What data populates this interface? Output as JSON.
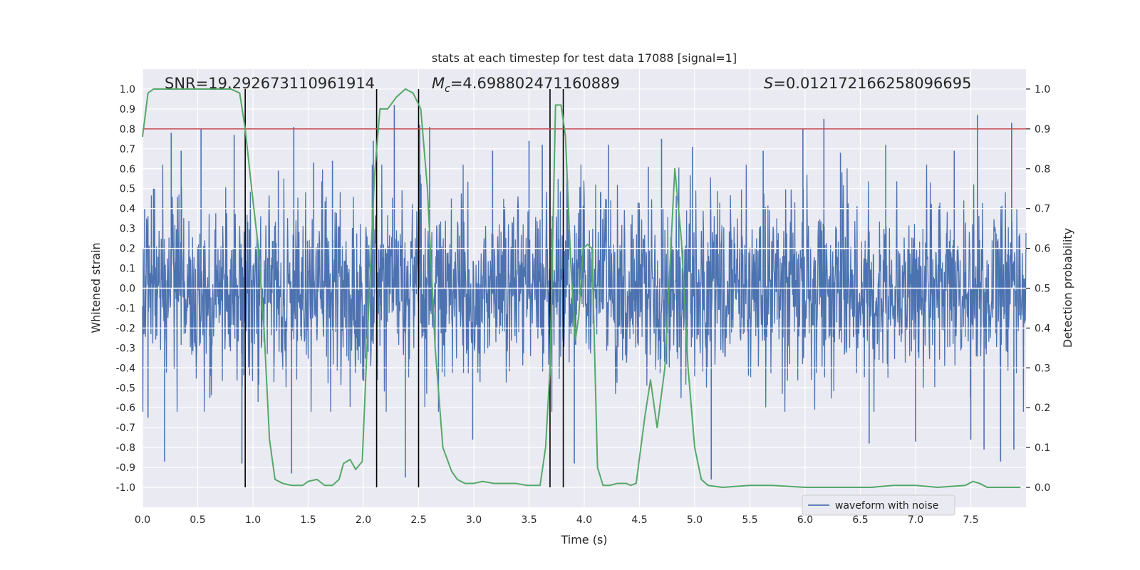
{
  "chart_data": {
    "type": "line",
    "title": "stats at each timestep for test data 17088 [signal=1]",
    "xlabel": "Time (s)",
    "ylabel_left": "Whitened strain",
    "ylabel_right": "Detection probability",
    "xlim": [
      0.0,
      8.0
    ],
    "ylim_left": [
      -1.1,
      1.1
    ],
    "ylim_right": [
      -0.05,
      1.05
    ],
    "xticks": [
      "0.0",
      "0.5",
      "1.0",
      "1.5",
      "2.0",
      "2.5",
      "3.0",
      "3.5",
      "4.0",
      "4.5",
      "5.0",
      "5.5",
      "6.0",
      "6.5",
      "7.0",
      "7.5"
    ],
    "yticks_left": [
      "1.0",
      "0.9",
      "0.8",
      "0.7",
      "0.6",
      "0.5",
      "0.4",
      "0.3",
      "0.2",
      "0.1",
      "0.0",
      "-0.1",
      "-0.2",
      "-0.3",
      "-0.4",
      "-0.5",
      "-0.6",
      "-0.7",
      "-0.8",
      "-0.9",
      "-1.0"
    ],
    "yticks_right": [
      "1.0",
      "0.9",
      "0.8",
      "0.7",
      "0.6",
      "0.5",
      "0.4",
      "0.3",
      "0.2",
      "0.1",
      "0.0"
    ],
    "annotations": {
      "snr": "SNR=19.292673110961914",
      "mc_symbol": "M",
      "mc_sub": "c",
      "mc_value": "=4.698802471160889",
      "s_symbol": "S",
      "s_value": "=0.012172166258096695"
    },
    "threshold": {
      "value_right": 0.9,
      "color": "#c44e52"
    },
    "vertical_markers_s": [
      0.93,
      2.12,
      2.5,
      3.69,
      3.81
    ],
    "series": [
      {
        "name": "waveform with noise",
        "color": "#4c72b0",
        "axis": "left",
        "kind": "noisy strain",
        "envelope_typical": 0.4,
        "peaks": [
          {
            "t": 0.02,
            "v": 0.4
          },
          {
            "t": 0.05,
            "v": -0.65
          },
          {
            "t": 0.1,
            "v": 0.5
          },
          {
            "t": 0.2,
            "v": -0.87
          },
          {
            "t": 0.26,
            "v": 0.78
          },
          {
            "t": 0.35,
            "v": 0.69
          },
          {
            "t": 0.53,
            "v": 0.8
          },
          {
            "t": 0.61,
            "v": -0.55
          },
          {
            "t": 0.83,
            "v": 0.77
          },
          {
            "t": 0.9,
            "v": -0.88
          },
          {
            "t": 1.23,
            "v": 0.59
          },
          {
            "t": 1.35,
            "v": -0.93
          },
          {
            "t": 1.37,
            "v": 0.81
          },
          {
            "t": 1.55,
            "v": 0.63
          },
          {
            "t": 1.72,
            "v": 0.64
          },
          {
            "t": 2.09,
            "v": 0.74
          },
          {
            "t": 2.28,
            "v": 0.92
          },
          {
            "t": 2.38,
            "v": -0.95
          },
          {
            "t": 2.51,
            "v": 0.82
          },
          {
            "t": 2.6,
            "v": 0.81
          },
          {
            "t": 2.99,
            "v": -0.76
          },
          {
            "t": 3.17,
            "v": 0.69
          },
          {
            "t": 3.5,
            "v": 0.74
          },
          {
            "t": 3.62,
            "v": 0.72
          },
          {
            "t": 3.91,
            "v": -0.88
          },
          {
            "t": 4.22,
            "v": 0.72
          },
          {
            "t": 4.58,
            "v": 0.61
          },
          {
            "t": 4.7,
            "v": 0.75
          },
          {
            "t": 4.98,
            "v": 0.71
          },
          {
            "t": 5.15,
            "v": -0.96
          },
          {
            "t": 5.62,
            "v": 0.69
          },
          {
            "t": 5.98,
            "v": 0.8
          },
          {
            "t": 6.17,
            "v": 0.85
          },
          {
            "t": 6.32,
            "v": 0.68
          },
          {
            "t": 6.58,
            "v": -0.78
          },
          {
            "t": 6.73,
            "v": 0.72
          },
          {
            "t": 7.0,
            "v": -0.77
          },
          {
            "t": 7.35,
            "v": 0.69
          },
          {
            "t": 7.5,
            "v": -0.76
          },
          {
            "t": 7.56,
            "v": 0.87
          },
          {
            "t": 7.62,
            "v": -0.81
          },
          {
            "t": 7.77,
            "v": -0.87
          },
          {
            "t": 7.87,
            "v": 0.83
          },
          {
            "t": 7.89,
            "v": -0.81
          }
        ]
      },
      {
        "name": "detection probability",
        "color": "#55a868",
        "axis": "right",
        "points": [
          [
            0.0,
            0.88
          ],
          [
            0.05,
            0.99
          ],
          [
            0.1,
            1.0
          ],
          [
            0.2,
            1.0
          ],
          [
            0.4,
            1.0
          ],
          [
            0.6,
            1.0
          ],
          [
            0.8,
            1.0
          ],
          [
            0.88,
            0.99
          ],
          [
            0.93,
            0.9
          ],
          [
            1.0,
            0.72
          ],
          [
            1.05,
            0.6
          ],
          [
            1.1,
            0.4
          ],
          [
            1.15,
            0.12
          ],
          [
            1.2,
            0.02
          ],
          [
            1.27,
            0.01
          ],
          [
            1.35,
            0.005
          ],
          [
            1.45,
            0.005
          ],
          [
            1.5,
            0.015
          ],
          [
            1.58,
            0.02
          ],
          [
            1.65,
            0.005
          ],
          [
            1.72,
            0.005
          ],
          [
            1.78,
            0.02
          ],
          [
            1.82,
            0.06
          ],
          [
            1.88,
            0.07
          ],
          [
            1.93,
            0.045
          ],
          [
            1.99,
            0.065
          ],
          [
            2.04,
            0.4
          ],
          [
            2.1,
            0.78
          ],
          [
            2.15,
            0.95
          ],
          [
            2.22,
            0.95
          ],
          [
            2.3,
            0.98
          ],
          [
            2.38,
            1.0
          ],
          [
            2.45,
            0.99
          ],
          [
            2.52,
            0.95
          ],
          [
            2.58,
            0.75
          ],
          [
            2.65,
            0.35
          ],
          [
            2.72,
            0.1
          ],
          [
            2.8,
            0.04
          ],
          [
            2.85,
            0.02
          ],
          [
            2.92,
            0.01
          ],
          [
            3.0,
            0.01
          ],
          [
            3.08,
            0.015
          ],
          [
            3.18,
            0.01
          ],
          [
            3.28,
            0.01
          ],
          [
            3.38,
            0.01
          ],
          [
            3.48,
            0.005
          ],
          [
            3.55,
            0.005
          ],
          [
            3.6,
            0.005
          ],
          [
            3.65,
            0.1
          ],
          [
            3.69,
            0.3
          ],
          [
            3.74,
            0.96
          ],
          [
            3.79,
            0.96
          ],
          [
            3.83,
            0.88
          ],
          [
            3.88,
            0.55
          ],
          [
            3.92,
            0.37
          ],
          [
            3.95,
            0.43
          ],
          [
            3.99,
            0.6
          ],
          [
            4.03,
            0.61
          ],
          [
            4.07,
            0.6
          ],
          [
            4.12,
            0.05
          ],
          [
            4.17,
            0.005
          ],
          [
            4.23,
            0.005
          ],
          [
            4.3,
            0.01
          ],
          [
            4.38,
            0.01
          ],
          [
            4.42,
            0.005
          ],
          [
            4.47,
            0.01
          ],
          [
            4.55,
            0.18
          ],
          [
            4.6,
            0.27
          ],
          [
            4.66,
            0.15
          ],
          [
            4.73,
            0.3
          ],
          [
            4.82,
            0.8
          ],
          [
            4.88,
            0.62
          ],
          [
            4.94,
            0.3
          ],
          [
            5.0,
            0.1
          ],
          [
            5.06,
            0.02
          ],
          [
            5.12,
            0.005
          ],
          [
            5.25,
            0.0
          ],
          [
            5.5,
            0.005
          ],
          [
            5.7,
            0.005
          ],
          [
            6.0,
            0.0
          ],
          [
            6.3,
            0.0
          ],
          [
            6.6,
            0.0
          ],
          [
            6.8,
            0.005
          ],
          [
            7.0,
            0.005
          ],
          [
            7.2,
            0.0
          ],
          [
            7.45,
            0.005
          ],
          [
            7.52,
            0.015
          ],
          [
            7.58,
            0.01
          ],
          [
            7.65,
            0.0
          ],
          [
            7.8,
            0.0
          ],
          [
            7.95,
            0.0
          ]
        ]
      }
    ],
    "legend": {
      "label": "waveform with noise",
      "placement": "lower-right"
    }
  }
}
